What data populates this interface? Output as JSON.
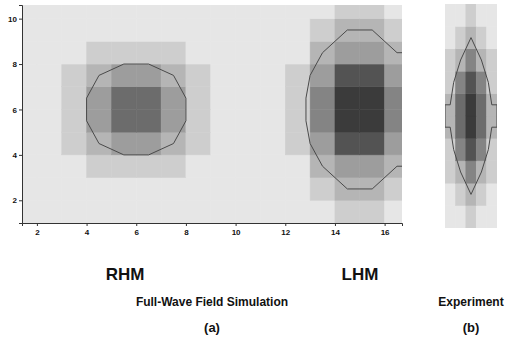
{
  "chart_data": [
    {
      "type": "heatmap",
      "title": "Full-Wave Field Simulation",
      "panel": "(a)",
      "annotations": [
        "RHM",
        "LHM"
      ],
      "x": [
        1.5,
        2.5,
        3.5,
        4.5,
        5.5,
        6.5,
        7.5,
        8.5,
        9.5,
        10.5,
        11.5,
        12.5,
        13.5,
        14.5,
        15.5,
        16.5
      ],
      "y": [
        1.5,
        2.5,
        3.5,
        4.5,
        5.5,
        6.5,
        7.5,
        8.5,
        9.5,
        10.5
      ],
      "z": [
        [
          1,
          1,
          1,
          1,
          1,
          1,
          1,
          1,
          1,
          1,
          1,
          1,
          1,
          2,
          2,
          1
        ],
        [
          1,
          1,
          1,
          1,
          1,
          1,
          1,
          1,
          1,
          1,
          1,
          1,
          2,
          3,
          3,
          2
        ],
        [
          1,
          1,
          1,
          2,
          2,
          2,
          2,
          1,
          1,
          1,
          1,
          1,
          3,
          4,
          4,
          3
        ],
        [
          1,
          1,
          2,
          3,
          4,
          4,
          3,
          2,
          1,
          1,
          1,
          2,
          4,
          7,
          7,
          4
        ],
        [
          1,
          1,
          2,
          4,
          6,
          6,
          4,
          2,
          1,
          1,
          1,
          2,
          5,
          8,
          8,
          5
        ],
        [
          1,
          1,
          2,
          4,
          6,
          6,
          4,
          2,
          1,
          1,
          1,
          2,
          5,
          8,
          8,
          5
        ],
        [
          1,
          1,
          2,
          3,
          4,
          4,
          3,
          2,
          1,
          1,
          1,
          2,
          4,
          7,
          7,
          4
        ],
        [
          1,
          1,
          1,
          2,
          2,
          2,
          2,
          1,
          1,
          1,
          1,
          1,
          3,
          4,
          4,
          3
        ],
        [
          1,
          1,
          1,
          1,
          1,
          1,
          1,
          1,
          1,
          1,
          1,
          1,
          2,
          3,
          3,
          2
        ],
        [
          1,
          1,
          1,
          1,
          1,
          1,
          1,
          1,
          1,
          1,
          1,
          1,
          1,
          2,
          2,
          1
        ]
      ],
      "zlim": [
        0,
        9
      ],
      "contour_levels": [
        3
      ],
      "color": "#222222",
      "xlim": [
        1.4,
        16.7
      ],
      "ylim": [
        1,
        10.6
      ],
      "xticks": [
        2,
        4,
        6,
        8,
        10,
        12,
        14,
        16
      ],
      "yticks": [
        2,
        4,
        6,
        8,
        10
      ]
    },
    {
      "type": "heatmap",
      "title": "Experiment",
      "panel": "(b)",
      "z": [
        [
          1,
          1,
          2,
          1,
          1
        ],
        [
          1,
          2,
          3,
          2,
          1
        ],
        [
          2,
          3,
          5,
          3,
          2
        ],
        [
          2,
          5,
          7,
          5,
          2
        ],
        [
          3,
          6,
          8,
          6,
          3
        ],
        [
          3,
          6,
          8,
          6,
          3
        ],
        [
          2,
          5,
          7,
          5,
          2
        ],
        [
          2,
          3,
          5,
          3,
          2
        ],
        [
          1,
          2,
          3,
          2,
          1
        ],
        [
          1,
          1,
          2,
          1,
          1
        ]
      ],
      "zlim": [
        0,
        9
      ],
      "contour_levels": [
        3
      ],
      "color": "#222222",
      "tick_labels": false
    }
  ]
}
